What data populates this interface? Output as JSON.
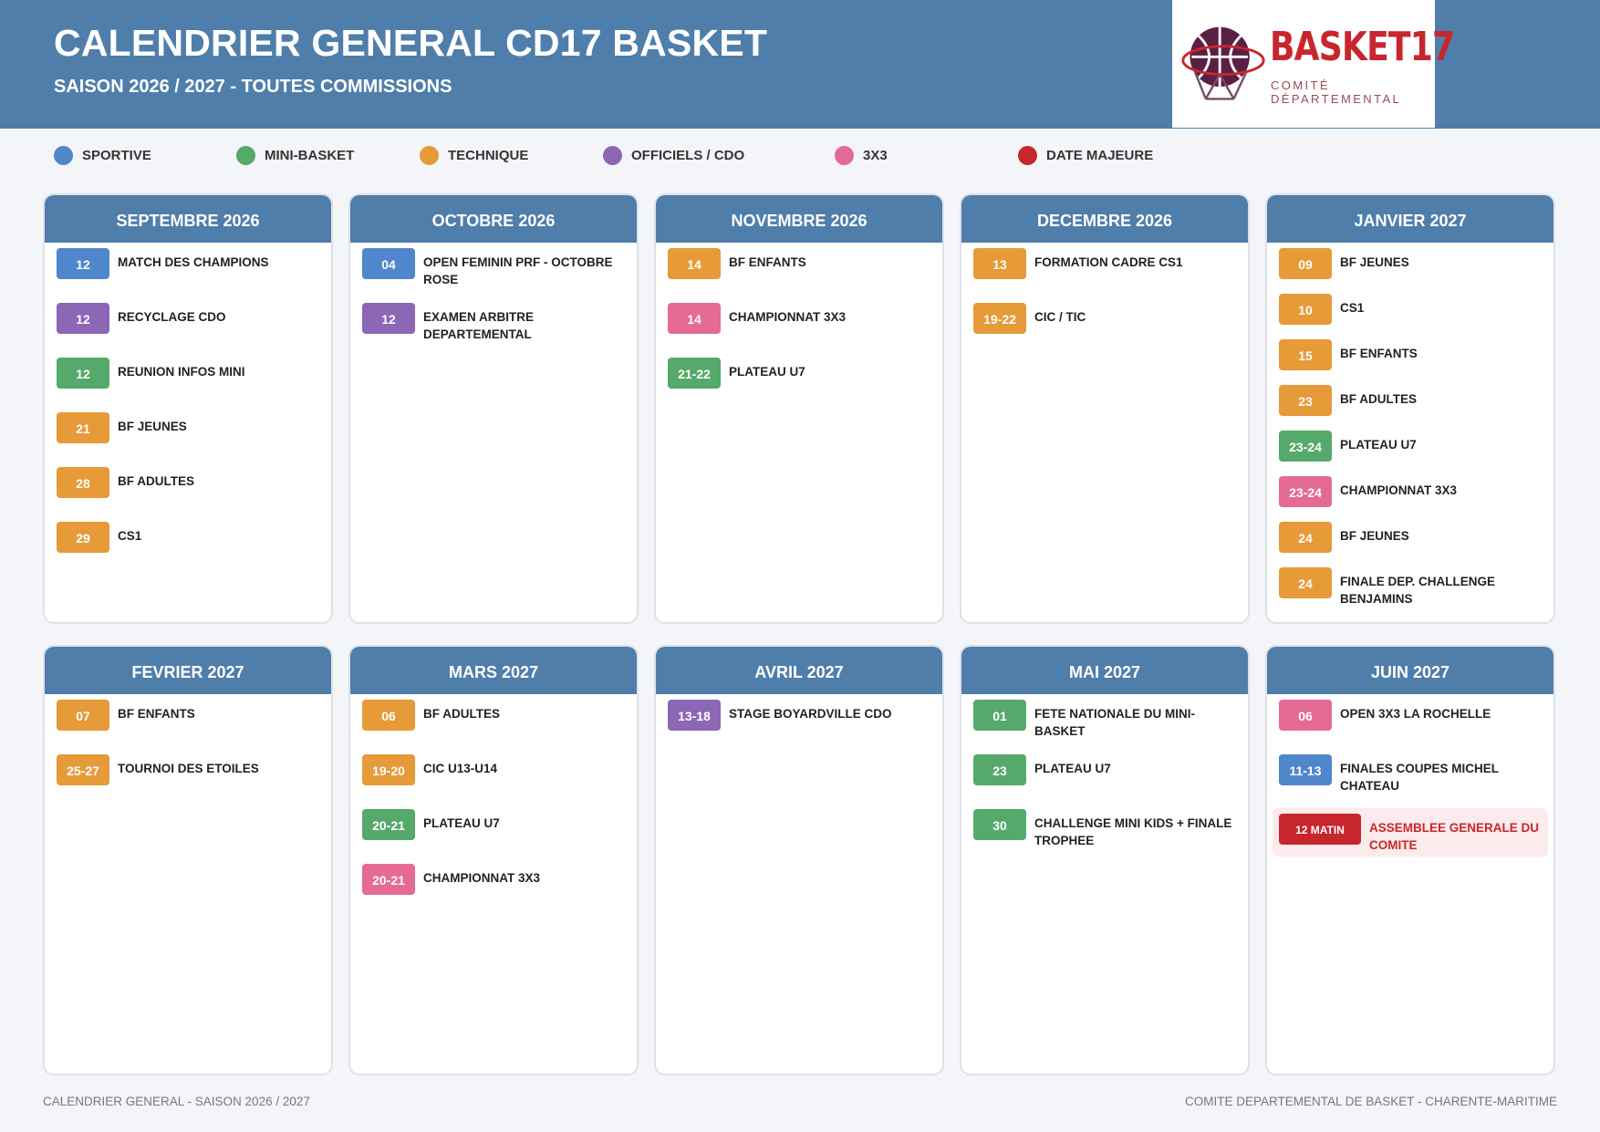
{
  "header": {
    "title": "CALENDRIER GENERAL CD17 BASKET",
    "subtitle": "SAISON 2026 / 2027 - TOUTES COMMISSIONS",
    "logo_name": "BASKET17",
    "logo_sub": "COMITÉ DÉPARTEMENTAL"
  },
  "colors": {
    "sportive": "#4f86cc",
    "mini": "#55a96b",
    "technique": "#e69a38",
    "officiels": "#8b67b6",
    "x3": "#e56a95",
    "majeure": "#c8262d"
  },
  "legend": [
    {
      "label": "SPORTIVE",
      "cat": "sportive"
    },
    {
      "label": "MINI-BASKET",
      "cat": "mini"
    },
    {
      "label": "TECHNIQUE",
      "cat": "technique"
    },
    {
      "label": "OFFICIELS / CDO",
      "cat": "officiels"
    },
    {
      "label": "3X3",
      "cat": "x3"
    },
    {
      "label": "DATE MAJEURE",
      "cat": "majeure"
    }
  ],
  "months": [
    {
      "title": "SEPTEMBRE 2026",
      "events": [
        {
          "date": "12",
          "label": "MATCH DES CHAMPIONS",
          "cat": "sportive"
        },
        {
          "date": "12",
          "label": "RECYCLAGE CDO",
          "cat": "officiels"
        },
        {
          "date": "12",
          "label": "REUNION INFOS MINI",
          "cat": "mini"
        },
        {
          "date": "21",
          "label": "BF JEUNES",
          "cat": "technique"
        },
        {
          "date": "28",
          "label": "BF ADULTES",
          "cat": "technique"
        },
        {
          "date": "29",
          "label": "CS1",
          "cat": "technique"
        }
      ]
    },
    {
      "title": "OCTOBRE 2026",
      "events": [
        {
          "date": "04",
          "label": "OPEN FEMININ PRF - OCTOBRE ROSE",
          "cat": "sportive"
        },
        {
          "date": "12",
          "label": "EXAMEN ARBITRE DEPARTEMENTAL",
          "cat": "officiels"
        }
      ]
    },
    {
      "title": "NOVEMBRE 2026",
      "events": [
        {
          "date": "14",
          "label": "BF ENFANTS",
          "cat": "technique"
        },
        {
          "date": "14",
          "label": "CHAMPIONNAT 3X3",
          "cat": "x3"
        },
        {
          "date": "21-22",
          "label": "PLATEAU U7",
          "cat": "mini"
        }
      ]
    },
    {
      "title": "DECEMBRE 2026",
      "events": [
        {
          "date": "13",
          "label": "FORMATION CADRE CS1",
          "cat": "technique"
        },
        {
          "date": "19-22",
          "label": "CIC / TIC",
          "cat": "technique"
        }
      ]
    },
    {
      "title": "JANVIER 2027",
      "compact": true,
      "events": [
        {
          "date": "09",
          "label": "BF JEUNES",
          "cat": "technique"
        },
        {
          "date": "10",
          "label": "CS1",
          "cat": "technique"
        },
        {
          "date": "15",
          "label": "BF ENFANTS",
          "cat": "technique"
        },
        {
          "date": "23",
          "label": "BF ADULTES",
          "cat": "technique"
        },
        {
          "date": "23-24",
          "label": "PLATEAU U7",
          "cat": "mini"
        },
        {
          "date": "23-24",
          "label": "CHAMPIONNAT 3X3",
          "cat": "x3"
        },
        {
          "date": "24",
          "label": "BF JEUNES",
          "cat": "technique"
        },
        {
          "date": "24",
          "label": "FINALE DEP. CHALLENGE BENJAMINS",
          "cat": "technique"
        }
      ]
    },
    {
      "title": "FEVRIER 2027",
      "events": [
        {
          "date": "07",
          "label": "BF ENFANTS",
          "cat": "technique"
        },
        {
          "date": "25-27",
          "label": "TOURNOI DES ETOILES",
          "cat": "technique"
        }
      ]
    },
    {
      "title": "MARS 2027",
      "events": [
        {
          "date": "06",
          "label": "BF ADULTES",
          "cat": "technique"
        },
        {
          "date": "19-20",
          "label": "CIC U13-U14",
          "cat": "technique"
        },
        {
          "date": "20-21",
          "label": "PLATEAU U7",
          "cat": "mini"
        },
        {
          "date": "20-21",
          "label": "CHAMPIONNAT 3X3",
          "cat": "x3"
        }
      ]
    },
    {
      "title": "AVRIL 2027",
      "events": [
        {
          "date": "13-18",
          "label": "STAGE BOYARDVILLE CDO",
          "cat": "officiels"
        }
      ]
    },
    {
      "title": "MAI 2027",
      "events": [
        {
          "date": "01",
          "label": "FETE NATIONALE DU MINI-BASKET",
          "cat": "mini"
        },
        {
          "date": "23",
          "label": "PLATEAU U7",
          "cat": "mini"
        },
        {
          "date": "30",
          "label": "CHALLENGE MINI KIDS + FINALE TROPHEE",
          "cat": "mini"
        }
      ]
    },
    {
      "title": "JUIN 2027",
      "events": [
        {
          "date": "06",
          "label": "OPEN 3X3 LA ROCHELLE",
          "cat": "x3"
        },
        {
          "date": "11-13",
          "label": "FINALES COUPES MICHEL CHATEAU",
          "cat": "sportive"
        },
        {
          "date": "12 MATIN",
          "label": "ASSEMBLEE GENERALE DU COMITE",
          "cat": "majeure",
          "major": true
        }
      ]
    }
  ],
  "footer": {
    "left": "CALENDRIER GENERAL - SAISON 2026 / 2027",
    "right": "COMITE DEPARTEMENTAL DE BASKET - CHARENTE-MARITIME"
  }
}
